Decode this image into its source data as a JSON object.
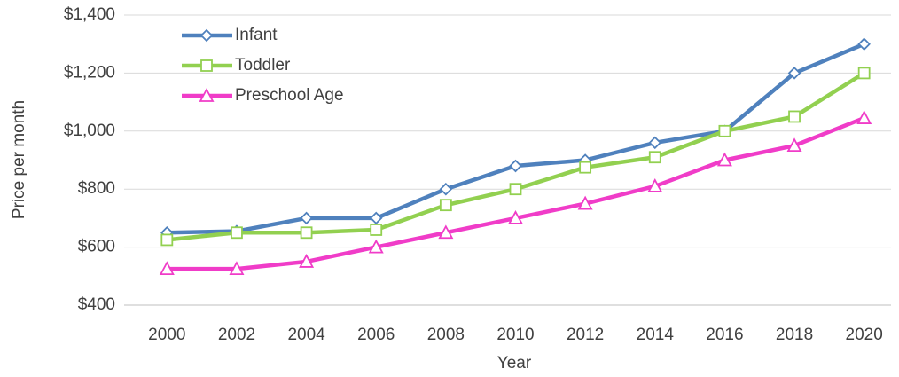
{
  "chart_data": {
    "type": "line",
    "x_label": "Year",
    "y_label": "Price per month",
    "categories": [
      "2000",
      "2002",
      "2004",
      "2006",
      "2008",
      "2010",
      "2012",
      "2014",
      "2016",
      "2018",
      "2020"
    ],
    "series": [
      {
        "name": "Infant",
        "color": "#4f81bd",
        "marker": "diamond",
        "values": [
          650,
          655,
          700,
          700,
          800,
          880,
          900,
          960,
          1000,
          1200,
          1300
        ]
      },
      {
        "name": "Toddler",
        "color": "#92d050",
        "marker": "square",
        "values": [
          625,
          650,
          650,
          660,
          745,
          800,
          875,
          910,
          1000,
          1050,
          1200
        ]
      },
      {
        "name": "Preschool Age",
        "color": "#f03cc8",
        "marker": "triangle",
        "values": [
          525,
          525,
          550,
          600,
          650,
          700,
          750,
          810,
          900,
          950,
          1045
        ]
      }
    ],
    "ylim": [
      400,
      1400
    ],
    "yticks": [
      {
        "value": 400,
        "label": "$400"
      },
      {
        "value": 600,
        "label": "$600"
      },
      {
        "value": 800,
        "label": "$800"
      },
      {
        "value": 1000,
        "label": "$1,000"
      },
      {
        "value": 1200,
        "label": "$1,200"
      },
      {
        "value": 1400,
        "label": "$1,400"
      }
    ],
    "grid": true,
    "legend": "upper left"
  }
}
